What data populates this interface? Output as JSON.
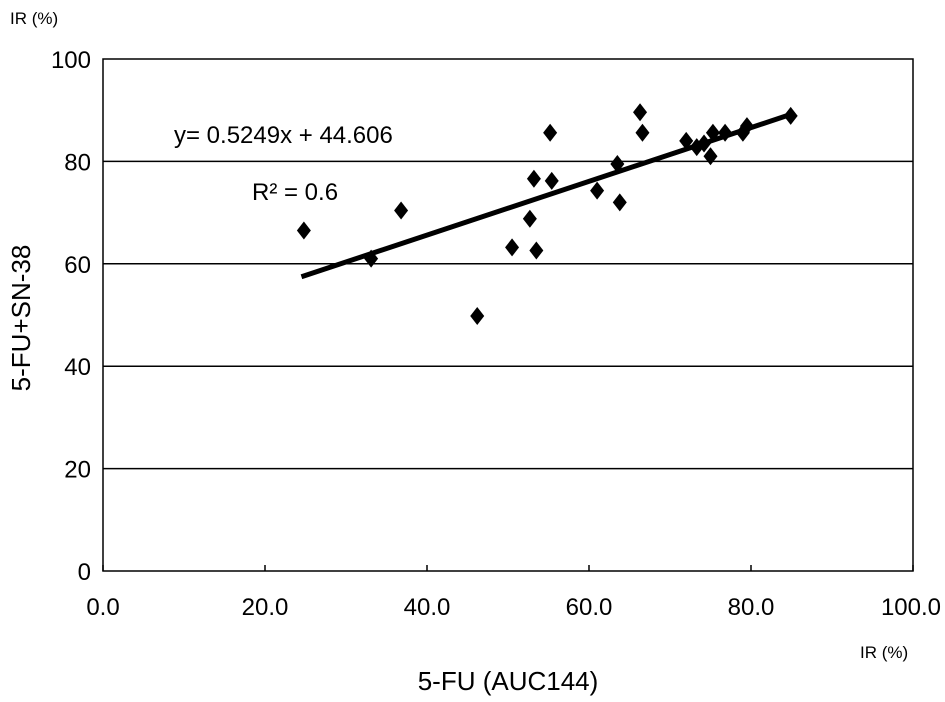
{
  "chart_data": {
    "type": "scatter",
    "y_unit_label": "IR (%)",
    "x_unit_label": "IR (%)",
    "xlabel": "5-FU (AUC144)",
    "ylabel": "5-FU+SN-38",
    "xlim": [
      0,
      100
    ],
    "ylim": [
      0,
      100
    ],
    "x_ticks": [
      "0.0",
      "20.0",
      "40.0",
      "60.0",
      "80.0",
      "100.0"
    ],
    "y_ticks": [
      "0",
      "20",
      "40",
      "60",
      "80",
      "100"
    ],
    "grid": "horizontal",
    "equation": "y= 0.5249x + 44.606",
    "r_squared": "R² = 0.6",
    "trendline": {
      "slope": 0.5249,
      "intercept": 44.606,
      "x_range": [
        24.5,
        85
      ]
    },
    "points": [
      {
        "x": 24.8,
        "y": 66.5
      },
      {
        "x": 33.1,
        "y": 61.0
      },
      {
        "x": 36.8,
        "y": 70.4
      },
      {
        "x": 46.2,
        "y": 49.8
      },
      {
        "x": 50.5,
        "y": 63.2
      },
      {
        "x": 52.7,
        "y": 68.8
      },
      {
        "x": 53.2,
        "y": 76.6
      },
      {
        "x": 53.5,
        "y": 62.6
      },
      {
        "x": 55.2,
        "y": 85.6
      },
      {
        "x": 55.4,
        "y": 76.2
      },
      {
        "x": 61.0,
        "y": 74.3
      },
      {
        "x": 63.5,
        "y": 79.5
      },
      {
        "x": 63.8,
        "y": 72.0
      },
      {
        "x": 66.3,
        "y": 89.6
      },
      {
        "x": 66.6,
        "y": 85.6
      },
      {
        "x": 72.0,
        "y": 84.0
      },
      {
        "x": 73.3,
        "y": 82.8
      },
      {
        "x": 74.2,
        "y": 83.5
      },
      {
        "x": 75.0,
        "y": 81.0
      },
      {
        "x": 75.3,
        "y": 85.6
      },
      {
        "x": 76.8,
        "y": 85.6
      },
      {
        "x": 79.0,
        "y": 85.6
      },
      {
        "x": 79.5,
        "y": 86.9
      },
      {
        "x": 84.9,
        "y": 88.9
      }
    ]
  }
}
